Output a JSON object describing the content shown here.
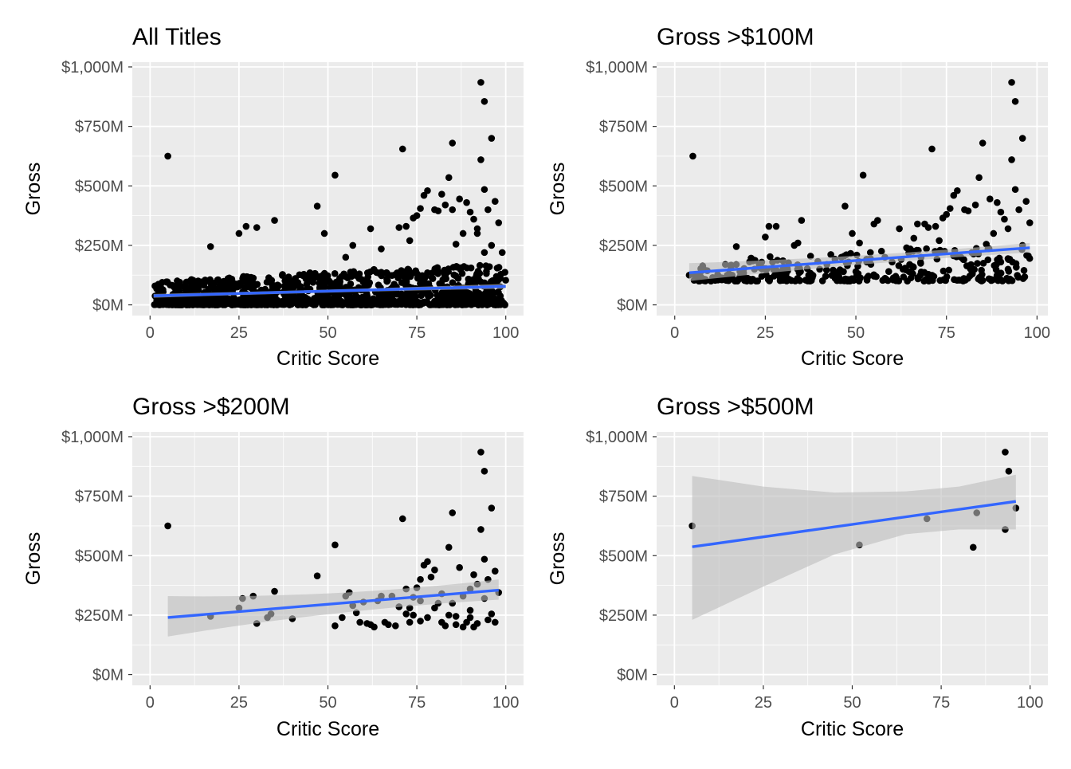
{
  "colors": {
    "panel_bg": "#ebebeb",
    "grid_major": "#ffffff",
    "point": "#000000",
    "smooth_line": "#3366ff",
    "ribbon": "#bdbdbd",
    "tick_text": "#4d4d4d"
  },
  "chart_data": [
    {
      "type": "scatter",
      "title": "All Titles",
      "xlabel": "Critic Score",
      "ylabel": "Gross",
      "xlim": [
        -5,
        105
      ],
      "ylim": [
        -45,
        1020
      ],
      "x_ticks": [
        0,
        25,
        50,
        75,
        100
      ],
      "x_tick_labels": [
        "0",
        "25",
        "50",
        "75",
        "100"
      ],
      "y_ticks": [
        0,
        250,
        500,
        750,
        1000
      ],
      "y_tick_labels": [
        "$0M",
        "$250M",
        "$500M",
        "$750M",
        "$1,000M"
      ],
      "grid": true,
      "smooth": {
        "method": "lm",
        "x": [
          1,
          100
        ],
        "y": [
          38,
          78
        ],
        "ci_lower": [
          30,
          68
        ],
        "ci_upper": [
          46,
          88
        ]
      },
      "highlight_points": [
        [
          5,
          625
        ],
        [
          17,
          245
        ],
        [
          25,
          300
        ],
        [
          27,
          330
        ],
        [
          30,
          325
        ],
        [
          35,
          355
        ],
        [
          47,
          415
        ],
        [
          49,
          300
        ],
        [
          52,
          545
        ],
        [
          55,
          200
        ],
        [
          57,
          250
        ],
        [
          62,
          320
        ],
        [
          65,
          235
        ],
        [
          70,
          325
        ],
        [
          71,
          655
        ],
        [
          72,
          330
        ],
        [
          73,
          270
        ],
        [
          74,
          365
        ],
        [
          75,
          375
        ],
        [
          76,
          405
        ],
        [
          77,
          460
        ],
        [
          78,
          480
        ],
        [
          80,
          400
        ],
        [
          81,
          395
        ],
        [
          82,
          465
        ],
        [
          83,
          420
        ],
        [
          84,
          535
        ],
        [
          85,
          400
        ],
        [
          85,
          680
        ],
        [
          86,
          255
        ],
        [
          87,
          445
        ],
        [
          88,
          300
        ],
        [
          89,
          430
        ],
        [
          90,
          390
        ],
        [
          91,
          360
        ],
        [
          92,
          320
        ],
        [
          93,
          935
        ],
        [
          93,
          610
        ],
        [
          94,
          855
        ],
        [
          94,
          485
        ],
        [
          95,
          400
        ],
        [
          96,
          700
        ],
        [
          97,
          435
        ],
        [
          98,
          345
        ],
        [
          99,
          220
        ],
        [
          96,
          250
        ],
        [
          92,
          300
        ],
        [
          94,
          220
        ]
      ],
      "bulk_summary": {
        "n_points": 1200,
        "x_range": [
          1,
          100
        ],
        "y_range": [
          0,
          180
        ],
        "note_mode": "dense lower band"
      }
    },
    {
      "type": "scatter",
      "title": "Gross >$100M",
      "xlabel": "Critic Score",
      "ylabel": "Gross",
      "xlim": [
        -5,
        103
      ],
      "ylim": [
        -45,
        1020
      ],
      "x_ticks": [
        0,
        25,
        50,
        75,
        100
      ],
      "x_tick_labels": [
        "0",
        "25",
        "50",
        "75",
        "100"
      ],
      "y_ticks": [
        0,
        250,
        500,
        750,
        1000
      ],
      "y_tick_labels": [
        "$0M",
        "$250M",
        "$500M",
        "$750M",
        "$1,000M"
      ],
      "grid": true,
      "smooth": {
        "method": "lm",
        "x": [
          4,
          98
        ],
        "y": [
          135,
          240
        ],
        "ci_lower": [
          100,
          220
        ],
        "ci_upper": [
          175,
          260
        ]
      },
      "points": [
        [
          4,
          125
        ],
        [
          5,
          625
        ],
        [
          8,
          150
        ],
        [
          10,
          100
        ],
        [
          12,
          120
        ],
        [
          13,
          105
        ],
        [
          15,
          130
        ],
        [
          17,
          245
        ],
        [
          18,
          140
        ],
        [
          20,
          110
        ],
        [
          22,
          150
        ],
        [
          24,
          120
        ],
        [
          25,
          285
        ],
        [
          26,
          330
        ],
        [
          27,
          180
        ],
        [
          28,
          330
        ],
        [
          30,
          160
        ],
        [
          33,
          250
        ],
        [
          34,
          260
        ],
        [
          35,
          355
        ],
        [
          38,
          120
        ],
        [
          40,
          150
        ],
        [
          42,
          170
        ],
        [
          44,
          130
        ],
        [
          46,
          200
        ],
        [
          47,
          415
        ],
        [
          48,
          180
        ],
        [
          49,
          300
        ],
        [
          50,
          140
        ],
        [
          51,
          260
        ],
        [
          52,
          545
        ],
        [
          53,
          180
        ],
        [
          54,
          220
        ],
        [
          55,
          340
        ],
        [
          56,
          355
        ],
        [
          58,
          200
        ],
        [
          60,
          180
        ],
        [
          61,
          120
        ],
        [
          62,
          320
        ],
        [
          63,
          150
        ],
        [
          64,
          240
        ],
        [
          65,
          235
        ],
        [
          66,
          280
        ],
        [
          67,
          340
        ],
        [
          68,
          200
        ],
        [
          69,
          340
        ],
        [
          70,
          325
        ],
        [
          71,
          655
        ],
        [
          72,
          330
        ],
        [
          73,
          270
        ],
        [
          74,
          365
        ],
        [
          75,
          380
        ],
        [
          76,
          405
        ],
        [
          77,
          460
        ],
        [
          78,
          480
        ],
        [
          79,
          200
        ],
        [
          80,
          400
        ],
        [
          81,
          395
        ],
        [
          82,
          220
        ],
        [
          83,
          420
        ],
        [
          84,
          535
        ],
        [
          85,
          680
        ],
        [
          86,
          255
        ],
        [
          87,
          445
        ],
        [
          88,
          300
        ],
        [
          89,
          430
        ],
        [
          90,
          390
        ],
        [
          91,
          360
        ],
        [
          92,
          320
        ],
        [
          93,
          935
        ],
        [
          93,
          610
        ],
        [
          94,
          855
        ],
        [
          94,
          485
        ],
        [
          95,
          400
        ],
        [
          96,
          700
        ],
        [
          97,
          435
        ],
        [
          98,
          345
        ],
        [
          96,
          250
        ],
        [
          92,
          150
        ],
        [
          90,
          180
        ]
      ],
      "bulk_summary": {
        "n_points": 300,
        "x_range": [
          5,
          98
        ],
        "y_range": [
          100,
          260
        ]
      }
    },
    {
      "type": "scatter",
      "title": "Gross >$200M",
      "xlabel": "Critic Score",
      "ylabel": "Gross",
      "xlim": [
        -5,
        105
      ],
      "ylim": [
        -45,
        1020
      ],
      "x_ticks": [
        0,
        25,
        50,
        75,
        100
      ],
      "x_tick_labels": [
        "0",
        "25",
        "50",
        "75",
        "100"
      ],
      "y_ticks": [
        0,
        250,
        500,
        750,
        1000
      ],
      "y_tick_labels": [
        "$0M",
        "$250M",
        "$500M",
        "$750M",
        "$1,000M"
      ],
      "grid": true,
      "smooth": {
        "method": "lm",
        "x": [
          5,
          98
        ],
        "y": [
          240,
          355
        ],
        "ci_lower": [
          160,
          315
        ],
        "ci_upper": [
          330,
          400
        ]
      },
      "points": [
        [
          5,
          625
        ],
        [
          17,
          245
        ],
        [
          25,
          280
        ],
        [
          26,
          320
        ],
        [
          29,
          330
        ],
        [
          30,
          215
        ],
        [
          33,
          240
        ],
        [
          34,
          255
        ],
        [
          35,
          350
        ],
        [
          40,
          235
        ],
        [
          47,
          415
        ],
        [
          52,
          545
        ],
        [
          52,
          205
        ],
        [
          54,
          240
        ],
        [
          55,
          330
        ],
        [
          56,
          345
        ],
        [
          57,
          290
        ],
        [
          58,
          260
        ],
        [
          59,
          220
        ],
        [
          60,
          305
        ],
        [
          61,
          215
        ],
        [
          62,
          210
        ],
        [
          63,
          200
        ],
        [
          64,
          310
        ],
        [
          65,
          330
        ],
        [
          66,
          220
        ],
        [
          67,
          210
        ],
        [
          68,
          330
        ],
        [
          69,
          205
        ],
        [
          70,
          285
        ],
        [
          71,
          655
        ],
        [
          72,
          255
        ],
        [
          72,
          360
        ],
        [
          73,
          280
        ],
        [
          74,
          250
        ],
        [
          74,
          325
        ],
        [
          75,
          365
        ],
        [
          76,
          225
        ],
        [
          76,
          400
        ],
        [
          77,
          460
        ],
        [
          78,
          475
        ],
        [
          79,
          410
        ],
        [
          80,
          440
        ],
        [
          80,
          280
        ],
        [
          81,
          300
        ],
        [
          82,
          220
        ],
        [
          83,
          205
        ],
        [
          84,
          535
        ],
        [
          85,
          680
        ],
        [
          85,
          300
        ],
        [
          86,
          245
        ],
        [
          87,
          450
        ],
        [
          88,
          200
        ],
        [
          88,
          330
        ],
        [
          89,
          220
        ],
        [
          90,
          360
        ],
        [
          90,
          240
        ],
        [
          91,
          200
        ],
        [
          91,
          420
        ],
        [
          92,
          380
        ],
        [
          93,
          935
        ],
        [
          93,
          610
        ],
        [
          94,
          855
        ],
        [
          94,
          485
        ],
        [
          94,
          320
        ],
        [
          95,
          400
        ],
        [
          95,
          230
        ],
        [
          96,
          700
        ],
        [
          96,
          255
        ],
        [
          97,
          435
        ],
        [
          97,
          220
        ],
        [
          98,
          345
        ],
        [
          92,
          215
        ],
        [
          90,
          270
        ],
        [
          86,
          210
        ],
        [
          84,
          250
        ],
        [
          82,
          340
        ],
        [
          78,
          240
        ],
        [
          76,
          310
        ],
        [
          73,
          220
        ]
      ]
    },
    {
      "type": "scatter",
      "title": "Gross >$500M",
      "xlabel": "Critic Score",
      "ylabel": "Gross",
      "xlim": [
        -5,
        105
      ],
      "ylim": [
        -45,
        1020
      ],
      "x_ticks": [
        0,
        25,
        50,
        75,
        100
      ],
      "x_tick_labels": [
        "0",
        "25",
        "50",
        "75",
        "100"
      ],
      "y_ticks": [
        0,
        250,
        500,
        750,
        1000
      ],
      "y_tick_labels": [
        "$0M",
        "$250M",
        "$500M",
        "$750M",
        "$1,000M"
      ],
      "grid": true,
      "smooth": {
        "method": "lm",
        "x": [
          5,
          96
        ],
        "y": [
          537,
          728
        ],
        "ci_lower": [
          230,
          610
        ],
        "ci_upper": [
          835,
          840
        ]
      },
      "ribbon_shape": {
        "x": [
          5,
          25,
          45,
          65,
          80,
          96
        ],
        "lower": [
          230,
          370,
          505,
          590,
          610,
          610
        ],
        "upper": [
          835,
          790,
          765,
          770,
          790,
          840
        ]
      },
      "points": [
        [
          5,
          625
        ],
        [
          52,
          545
        ],
        [
          71,
          655
        ],
        [
          84,
          535
        ],
        [
          85,
          680
        ],
        [
          93,
          935
        ],
        [
          93,
          610
        ],
        [
          94,
          855
        ],
        [
          96,
          700
        ]
      ]
    }
  ]
}
